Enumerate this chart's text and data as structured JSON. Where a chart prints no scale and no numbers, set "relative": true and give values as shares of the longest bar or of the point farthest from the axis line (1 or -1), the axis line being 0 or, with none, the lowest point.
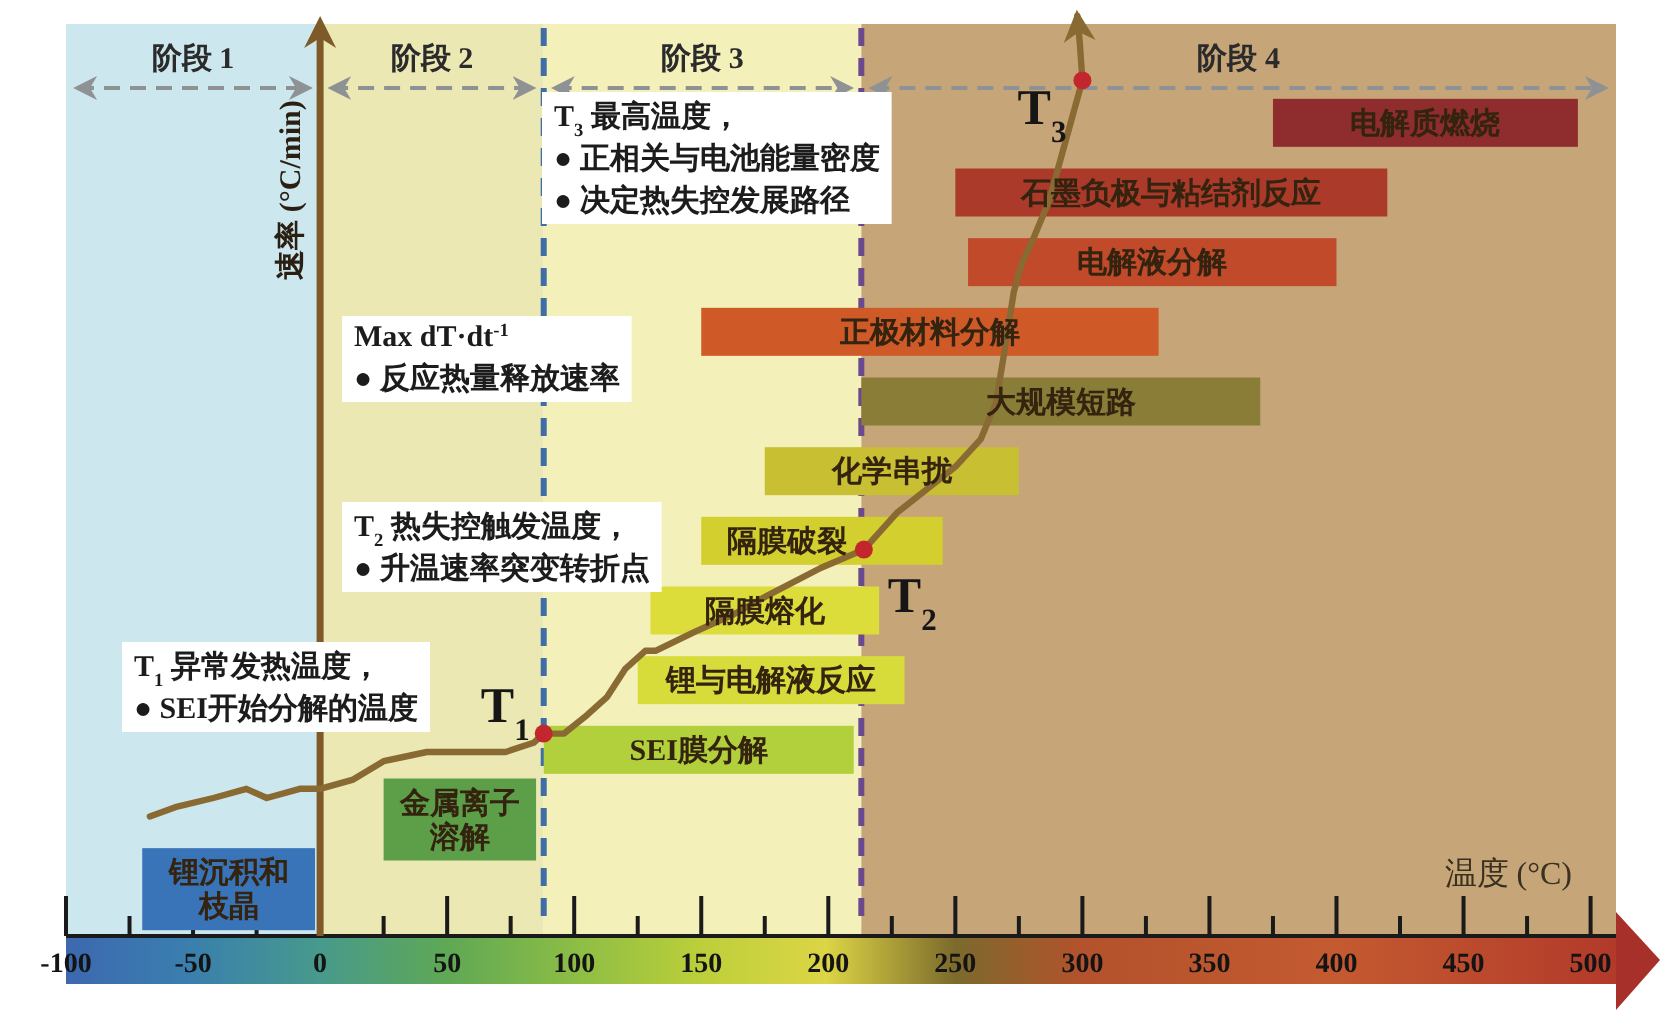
{
  "chart_data": [
    {
      "type": "bar",
      "orientation": "horizontal",
      "categories": [
        "电解质燃烧",
        "石墨负极与粘结剂反应",
        "电解液分解",
        "正极材料分解",
        "大规模短路",
        "化学串扰",
        "隔膜破裂",
        "隔膜熔化",
        "锂与电解液反应",
        "SEI膜分解",
        "金属离子溶解",
        "锂沉积和枝晶"
      ],
      "base": [
        375,
        250,
        255,
        150,
        213,
        175,
        150,
        130,
        125,
        88,
        25,
        -70
      ],
      "values": [
        120,
        170,
        145,
        180,
        157,
        100,
        95,
        90,
        105,
        122,
        60,
        68
      ],
      "colors": [
        "#8f2c2e",
        "#ab3a2a",
        "#c04a2a",
        "#cf5a28",
        "#8a7d38",
        "#c8bf32",
        "#d2cf2e",
        "#dcdc3a",
        "#d8dc3a",
        "#b2d03c",
        "#5d9e48",
        "#3a74b8"
      ],
      "xlabel": "温度 (°C)",
      "xlim": [
        -100,
        510
      ],
      "xticks": [
        -100,
        {
          "value": -75,
          "label": null
        },
        -50,
        {
          "value": -25,
          "label": null
        },
        0,
        {
          "value": 25,
          "label": null
        },
        50,
        {
          "value": 75,
          "label": null
        },
        100,
        {
          "value": 125,
          "label": null
        },
        150,
        {
          "value": 175,
          "label": null
        },
        200,
        {
          "value": 225,
          "label": null
        },
        250,
        {
          "value": 275,
          "label": null
        },
        300,
        {
          "value": 325,
          "label": null
        },
        350,
        {
          "value": 375,
          "label": null
        },
        400,
        {
          "value": 425,
          "label": null
        },
        450,
        {
          "value": 475,
          "label": null
        },
        500
      ],
      "bands": [
        {
          "axis": "x",
          "from": -100,
          "to": 0,
          "label": "阶段 1",
          "color": "#cde7ee"
        },
        {
          "axis": "x",
          "from": 0,
          "to": 88,
          "label": "阶段 2",
          "color": "#ebe8b4"
        },
        {
          "axis": "x",
          "from": 88,
          "to": 213,
          "label": "阶段 3",
          "color": "#f3f0ba"
        },
        {
          "axis": "x",
          "from": 213,
          "to": 510,
          "label": "阶段 4",
          "color": "#c6a678"
        }
      ],
      "ref_lines": [
        {
          "axis": "x",
          "value": 88,
          "color": "#3f6ea6",
          "line_style": "dashed"
        },
        {
          "axis": "x",
          "value": 213,
          "color": "#6a4a8e",
          "line_style": "dashed"
        }
      ],
      "annotations": [
        "T$_{3}$ 最高温度，\n● 正相关与电池能量密度\n● 决定热失控发展路径",
        "Max dT·dt$^{-1}$\n● 反应热量释放速率",
        "T$_{2}$ 热失控触发温度，\n● 升温速率突变转折点",
        "T$_{1}$ 异常发热温度，\n● SEI开始分解的温度"
      ]
    },
    {
      "type": "line",
      "relative": true,
      "ylabel": "速率 (°C/min)",
      "xlim": [
        -100,
        510
      ],
      "series": [
        {
          "type": "line",
          "color": "#8a6a33",
          "x": [
            -67,
            -57,
            -42,
            -29,
            -21,
            -8,
            0,
            13,
            25,
            42,
            57,
            73,
            84,
            88,
            96,
            105,
            113,
            120,
            128,
            132,
            147,
            163,
            176,
            197,
            214,
            227,
            250,
            260,
            266,
            269,
            273,
            276,
            281,
            287,
            291,
            295,
            300,
            299,
            298
          ],
          "values": [
            0.13,
            0.14,
            0.15,
            0.16,
            0.15,
            0.16,
            0.16,
            0.17,
            0.19,
            0.2,
            0.2,
            0.2,
            0.21,
            0.22,
            0.22,
            0.24,
            0.26,
            0.29,
            0.31,
            0.31,
            0.33,
            0.35,
            0.37,
            0.4,
            0.42,
            0.46,
            0.51,
            0.54,
            0.58,
            0.63,
            0.7,
            0.73,
            0.76,
            0.8,
            0.84,
            0.88,
            0.93,
            0.97,
            1
          ]
        },
        {
          "type": "scatter",
          "color": "#c1272d",
          "x": [
            88,
            214,
            300
          ],
          "values": [
            0.22,
            0.42,
            0.93
          ]
        }
      ],
      "annotations": [
        {
          "text": "T$_{1}$",
          "x": 88,
          "y": 0.22
        },
        {
          "text": "T$_{2}$",
          "x": 214,
          "y": 0.42
        },
        {
          "text": "T$_{3}$",
          "x": 300,
          "y": 0.93
        }
      ]
    }
  ]
}
